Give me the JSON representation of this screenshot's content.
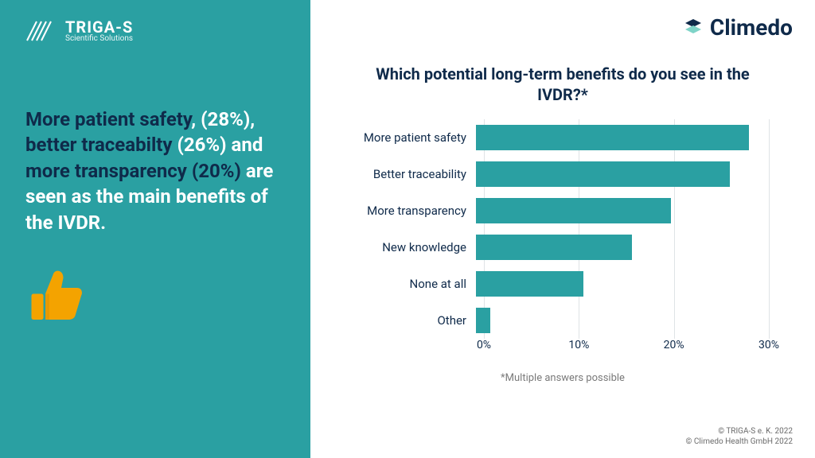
{
  "colors": {
    "teal": "#2aa0a2",
    "navy": "#0f2a4a",
    "white": "#ffffff",
    "orange": "#f4a300",
    "grid": "#dfe3e6",
    "footnote": "#7a7a7a",
    "copyright": "#6b6b6b"
  },
  "left": {
    "logo_name": "TRIGA-S",
    "logo_sub": "Scientific Solutions",
    "headline_parts": {
      "p1": "More patient safety",
      "p2": ", (28%), ",
      "p3": "better traceabilty",
      "p4": " (26%) and ",
      "p5": "more transparency (20%)",
      "p6": " are seen as the main benefits of the IVDR."
    }
  },
  "right": {
    "brand": "Climedo",
    "title": "Which potential long-term benefits do you see in the IVDR?*",
    "footnote": "*Multiple answers possible",
    "copyright1": "© TRIGA-S e. K. 2022",
    "copyright2": "© Climedo Health GmbH 2022"
  },
  "chart": {
    "type": "bar-horizontal",
    "xlim": [
      0,
      30
    ],
    "xtick_step": 10,
    "xtick_suffix": "%",
    "bar_color": "#2aa0a2",
    "grid_color": "#dfe3e6",
    "label_fontsize": 15,
    "tick_fontsize": 14,
    "categories": [
      "More patient safety",
      "Better traceability",
      "More transparency",
      "New knowledge",
      "None at all",
      "Other"
    ],
    "values": [
      28,
      26,
      20,
      16,
      11,
      1.5
    ]
  }
}
